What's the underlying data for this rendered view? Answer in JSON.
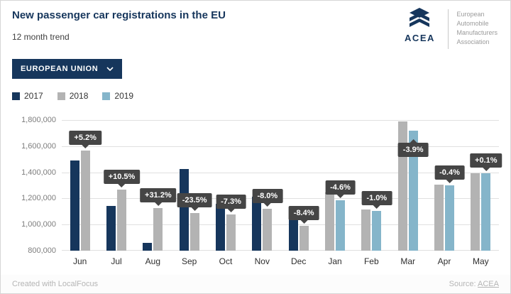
{
  "header": {
    "title": "New passenger car registrations in the EU",
    "subtitle": "12 month trend",
    "logo": {
      "brand": "ACEA",
      "org_lines": [
        "European",
        "Automobile",
        "Manufacturers",
        "Association"
      ]
    }
  },
  "controls": {
    "region_dropdown": {
      "selected": "EUROPEAN UNION"
    }
  },
  "legend": [
    {
      "label": "2017",
      "color": "#16365c"
    },
    {
      "label": "2018",
      "color": "#b3b3b3"
    },
    {
      "label": "2019",
      "color": "#85b5ca"
    }
  ],
  "chart_data": {
    "type": "bar",
    "title": "New passenger car registrations in the EU",
    "subtitle": "12 month trend",
    "categories": [
      "Jun",
      "Jul",
      "Aug",
      "Sep",
      "Oct",
      "Nov",
      "Dec",
      "Jan",
      "Feb",
      "Mar",
      "Apr",
      "May"
    ],
    "series": [
      {
        "name": "2017",
        "color": "#16365c",
        "values": [
          1490000,
          1145000,
          860000,
          1425000,
          1160000,
          1215000,
          1080000,
          null,
          null,
          null,
          null,
          null
        ]
      },
      {
        "name": "2018",
        "color": "#b3b3b3",
        "values": [
          1567000,
          1265000,
          1128000,
          1090000,
          1075000,
          1118000,
          989000,
          1245000,
          1115000,
          1790000,
          1305000,
          1390000
        ]
      },
      {
        "name": "2019",
        "color": "#85b5ca",
        "values": [
          null,
          null,
          null,
          null,
          null,
          null,
          null,
          1188000,
          1104000,
          1720000,
          1300000,
          1391000
        ]
      }
    ],
    "labels": [
      "+5.2%",
      "+10.5%",
      "+31.2%",
      "-23.5%",
      "-7.3%",
      "-8.0%",
      "-8.4%",
      "-4.6%",
      "-1.0%",
      "-3.9%",
      "-0.4%",
      "+0.1%"
    ],
    "ylim": [
      800000,
      1800000
    ],
    "yticks": [
      "800,000",
      "1,000,000",
      "1,200,000",
      "1,400,000",
      "1,600,000",
      "1,800,000"
    ],
    "grid": true,
    "legend_position": "top-left",
    "tooltip_bg": "#454545"
  },
  "footer": {
    "left": "Created with LocalFocus",
    "source_label": "Source:",
    "source_link": "ACEA"
  }
}
